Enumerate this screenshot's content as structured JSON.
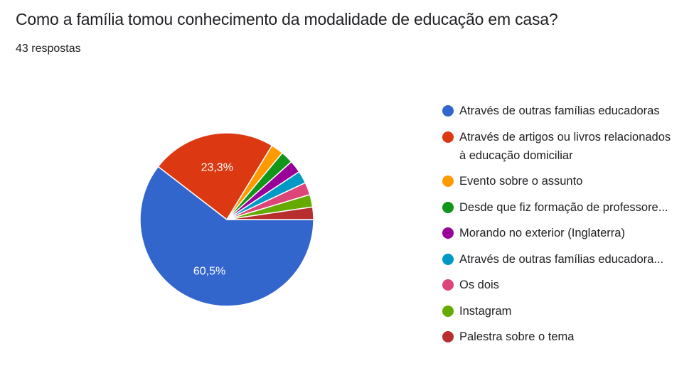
{
  "header": {
    "title": "Como a família tomou conhecimento da modalidade de educação em casa?",
    "subtitle": "43 respostas"
  },
  "chart_data": {
    "type": "pie",
    "categories": [
      "Através de outras famílias educadoras",
      "Através de artigos ou livros relacionados à educação domiciliar",
      "Evento sobre o assunto",
      "Desde que fiz formação de professore...",
      "Morando no exterior (Inglaterra)",
      "Através de outras famílias educadora...",
      "Os dois",
      "Instagram",
      "Palestra sobre o tema"
    ],
    "values": [
      26,
      10,
      1,
      1,
      1,
      1,
      1,
      1,
      1
    ],
    "percent_labels": [
      "60,5%",
      "23,3%",
      "",
      "",
      "",
      "",
      "",
      "",
      ""
    ],
    "colors": [
      "#3366cc",
      "#dc3912",
      "#ff9900",
      "#109618",
      "#990099",
      "#0099c6",
      "#dd4477",
      "#66aa00",
      "#b82e2e"
    ],
    "legend_position": "right"
  }
}
